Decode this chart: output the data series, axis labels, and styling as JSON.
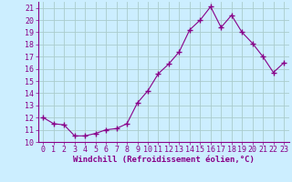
{
  "x": [
    0,
    1,
    2,
    3,
    4,
    5,
    6,
    7,
    8,
    9,
    10,
    11,
    12,
    13,
    14,
    15,
    16,
    17,
    18,
    19,
    20,
    21,
    22,
    23
  ],
  "y": [
    12.0,
    11.5,
    11.4,
    10.5,
    10.5,
    10.7,
    11.0,
    11.1,
    11.5,
    13.2,
    14.2,
    15.6,
    16.4,
    17.4,
    19.2,
    20.0,
    21.1,
    19.4,
    20.4,
    19.0,
    18.1,
    17.0,
    15.7,
    16.5
  ],
  "xlim": [
    -0.5,
    23.5
  ],
  "ylim": [
    10,
    21.5
  ],
  "yticks": [
    10,
    11,
    12,
    13,
    14,
    15,
    16,
    17,
    18,
    19,
    20,
    21
  ],
  "xticks": [
    0,
    1,
    2,
    3,
    4,
    5,
    6,
    7,
    8,
    9,
    10,
    11,
    12,
    13,
    14,
    15,
    16,
    17,
    18,
    19,
    20,
    21,
    22,
    23
  ],
  "xlabel": "Windchill (Refroidissement éolien,°C)",
  "line_color": "#880088",
  "marker": "+",
  "marker_size": 4,
  "bg_color": "#cceeff",
  "grid_color": "#aacccc",
  "border_color": "#880088",
  "tick_color": "#880088",
  "xlabel_fontsize": 6.5,
  "tick_fontsize": 6
}
